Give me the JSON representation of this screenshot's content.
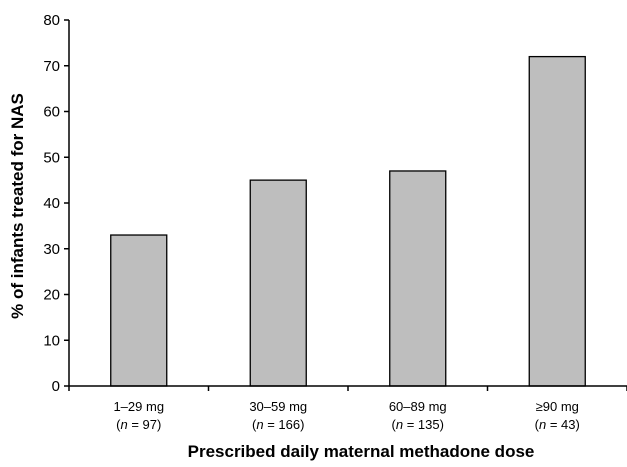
{
  "chart_data": {
    "type": "bar",
    "categories": [
      "1–29 mg",
      "30–59 mg",
      "60–89 mg",
      "≥90 mg"
    ],
    "n_labels": [
      "(n = 97)",
      "(n = 166)",
      "(n = 135)",
      "(n = 43)"
    ],
    "n_parts": [
      {
        "open": "(",
        "italic": "n",
        "rest": " = 97)"
      },
      {
        "open": "(",
        "italic": "n",
        "rest": " = 166)"
      },
      {
        "open": "(",
        "italic": "n",
        "rest": " = 135)"
      },
      {
        "open": "(",
        "italic": "n",
        "rest": " = 43)"
      }
    ],
    "values": [
      33,
      45,
      47,
      72
    ],
    "xlabel": "Prescribed daily maternal methadone dose",
    "ylabel": "% of infants treated for NAS",
    "ylim": [
      0,
      80
    ],
    "yticks": [
      "0",
      "10",
      "20",
      "30",
      "40",
      "50",
      "60",
      "70",
      "80"
    ],
    "grid": false,
    "legend": "none",
    "bar_color": "#bebebe",
    "bar_stroke": "#000000"
  }
}
